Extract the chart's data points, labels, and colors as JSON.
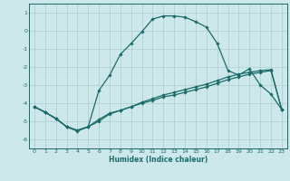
{
  "xlabel": "Humidex (Indice chaleur)",
  "xlim": [
    -0.5,
    23.5
  ],
  "ylim": [
    -6.5,
    1.5
  ],
  "yticks": [
    1,
    0,
    -1,
    -2,
    -3,
    -4,
    -5,
    -6
  ],
  "xticks": [
    0,
    1,
    2,
    3,
    4,
    5,
    6,
    7,
    8,
    9,
    10,
    11,
    12,
    13,
    14,
    15,
    16,
    17,
    18,
    19,
    20,
    21,
    22,
    23
  ],
  "bg_color": "#cce8ea",
  "grid_color": "#aaccce",
  "line_color": "#1a6b6b",
  "line2_x": [
    0,
    1,
    2,
    3,
    4,
    5,
    6,
    7,
    8,
    9,
    10,
    11,
    12,
    13,
    14,
    15,
    16,
    17,
    18,
    19,
    20,
    21,
    22,
    23
  ],
  "line2_y": [
    -4.2,
    -4.5,
    -4.85,
    -5.3,
    -5.5,
    -5.3,
    -3.3,
    -2.45,
    -1.3,
    -0.7,
    -0.05,
    0.65,
    0.82,
    0.82,
    0.75,
    0.5,
    0.2,
    -0.7,
    -2.2,
    -2.45,
    -2.1,
    -3.0,
    -3.5,
    -4.35
  ],
  "line1_x": [
    0,
    1,
    2,
    3,
    4,
    5,
    6,
    7,
    8,
    9,
    10,
    11,
    12,
    13,
    14,
    15,
    16,
    17,
    18,
    19,
    20,
    21,
    22,
    23
  ],
  "line1_y": [
    -4.2,
    -4.5,
    -4.85,
    -5.3,
    -5.5,
    -5.3,
    -4.9,
    -4.55,
    -4.4,
    -4.2,
    -4.0,
    -3.85,
    -3.65,
    -3.55,
    -3.4,
    -3.25,
    -3.1,
    -2.9,
    -2.7,
    -2.55,
    -2.4,
    -2.3,
    -2.2,
    -4.35
  ],
  "line3_x": [
    0,
    1,
    2,
    3,
    4,
    5,
    6,
    7,
    8,
    9,
    10,
    11,
    12,
    13,
    14,
    15,
    16,
    17,
    18,
    19,
    20,
    21,
    22,
    23
  ],
  "line3_y": [
    -4.2,
    -4.5,
    -4.85,
    -5.3,
    -5.55,
    -5.3,
    -5.0,
    -4.6,
    -4.4,
    -4.2,
    -3.95,
    -3.75,
    -3.55,
    -3.4,
    -3.25,
    -3.1,
    -2.95,
    -2.75,
    -2.55,
    -2.4,
    -2.3,
    -2.2,
    -2.15,
    -4.35
  ]
}
